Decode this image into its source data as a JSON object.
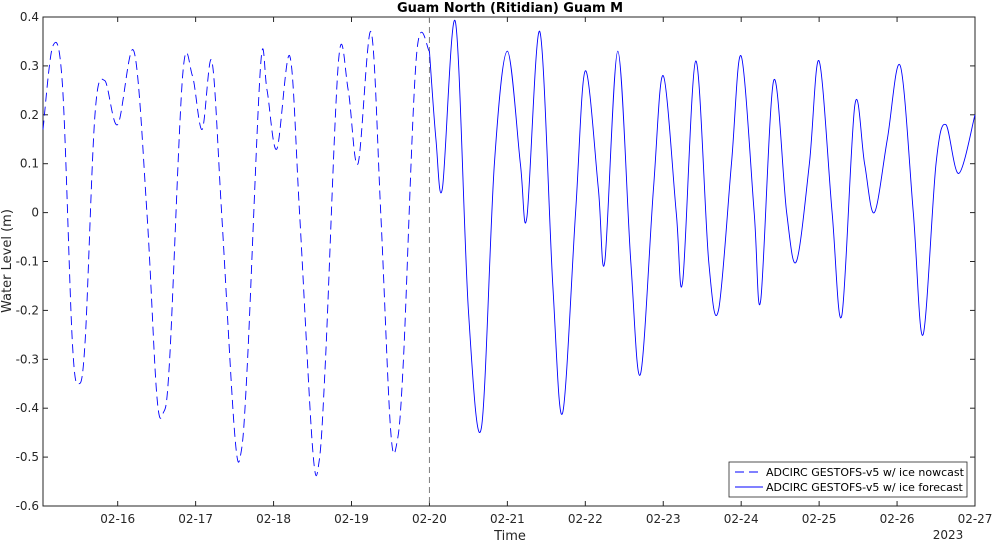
{
  "chart_data": {
    "type": "line",
    "title": "Guam North (Ritidian) Guam M",
    "xlabel": "Time",
    "ylabel": "Water Level (m)",
    "year_label": "2023",
    "xlim": [
      "2023-02-15T01:00",
      "2023-02-27T00:00"
    ],
    "ylim": [
      -0.6,
      0.4
    ],
    "yticks": [
      -0.6,
      -0.5,
      -0.4,
      -0.3,
      -0.2,
      -0.1,
      0,
      0.1,
      0.2,
      0.3,
      0.4
    ],
    "yticklabels": [
      "-0.6",
      "-0.5",
      "-0.4",
      "-0.3",
      "-0.2",
      "-0.1",
      "0",
      "0.1",
      "0.2",
      "0.3",
      "0.4"
    ],
    "xticks": [
      "2023-02-16",
      "2023-02-17",
      "2023-02-18",
      "2023-02-19",
      "2023-02-20",
      "2023-02-21",
      "2023-02-22",
      "2023-02-23",
      "2023-02-24",
      "2023-02-25",
      "2023-02-26",
      "2023-02-27"
    ],
    "xticklabels": [
      "02-16",
      "02-17",
      "02-18",
      "02-19",
      "02-20",
      "02-21",
      "02-22",
      "02-23",
      "02-24",
      "02-25",
      "02-26",
      "02-27"
    ],
    "grid": false,
    "legend_position": "bottom-right",
    "nowcast_divider": "2023-02-20T00:00",
    "series": [
      {
        "name": "ADCIRC GESTOFS-v5 w/ ice nowcast",
        "style": "dashed",
        "color": "#0000ff",
        "points": [
          [
            "2023-02-15T01:00",
            0.17
          ],
          [
            "2023-02-15T04:00",
            0.34
          ],
          [
            "2023-02-15T07:00",
            0.26
          ],
          [
            "2023-02-15T10:00",
            -0.26
          ],
          [
            "2023-02-15T12:00",
            -0.35
          ],
          [
            "2023-02-15T14:00",
            -0.26
          ],
          [
            "2023-02-15T17:00",
            0.2
          ],
          [
            "2023-02-15T20:00",
            0.27
          ],
          [
            "2023-02-16T00:00",
            0.18
          ],
          [
            "2023-02-16T05:00",
            0.33
          ],
          [
            "2023-02-16T09:00",
            0.0
          ],
          [
            "2023-02-16T12:00",
            -0.37
          ],
          [
            "2023-02-16T14:00",
            -0.41
          ],
          [
            "2023-02-16T16:00",
            -0.3
          ],
          [
            "2023-02-16T20:00",
            0.28
          ],
          [
            "2023-02-16T23:00",
            0.28
          ],
          [
            "2023-02-17T02:00",
            0.17
          ],
          [
            "2023-02-17T05:00",
            0.31
          ],
          [
            "2023-02-17T08:00",
            0.0
          ],
          [
            "2023-02-17T12:00",
            -0.45
          ],
          [
            "2023-02-17T14:00",
            -0.49
          ],
          [
            "2023-02-17T16:00",
            -0.3
          ],
          [
            "2023-02-17T20:00",
            0.3
          ],
          [
            "2023-02-17T22:00",
            0.25
          ],
          [
            "2023-02-18T01:00",
            0.13
          ],
          [
            "2023-02-18T05:00",
            0.32
          ],
          [
            "2023-02-18T08:00",
            0.0
          ],
          [
            "2023-02-18T12:00",
            -0.48
          ],
          [
            "2023-02-18T14:00",
            -0.51
          ],
          [
            "2023-02-18T16:00",
            -0.3
          ],
          [
            "2023-02-18T20:00",
            0.31
          ],
          [
            "2023-02-18T23:00",
            0.25
          ],
          [
            "2023-02-19T02:00",
            0.1
          ],
          [
            "2023-02-19T06:00",
            0.37
          ],
          [
            "2023-02-19T09:00",
            0.0
          ],
          [
            "2023-02-19T12:00",
            -0.44
          ],
          [
            "2023-02-19T14:00",
            -0.47
          ],
          [
            "2023-02-19T16:00",
            -0.3
          ],
          [
            "2023-02-19T20:00",
            0.32
          ],
          [
            "2023-02-20T00:00",
            0.33
          ]
        ]
      },
      {
        "name": "ADCIRC GESTOFS-v5 w/ ice forecast",
        "style": "solid",
        "color": "#0000ff",
        "points": [
          [
            "2023-02-20T00:00",
            0.33
          ],
          [
            "2023-02-20T02:00",
            0.15
          ],
          [
            "2023-02-20T04:00",
            0.05
          ],
          [
            "2023-02-20T08:00",
            0.39
          ],
          [
            "2023-02-20T12:00",
            -0.2
          ],
          [
            "2023-02-20T16:00",
            -0.44
          ],
          [
            "2023-02-20T20:00",
            0.1
          ],
          [
            "2023-02-21T00:00",
            0.33
          ],
          [
            "2023-02-21T04:00",
            0.1
          ],
          [
            "2023-02-21T06:00",
            -0.01
          ],
          [
            "2023-02-21T10:00",
            0.37
          ],
          [
            "2023-02-21T14:00",
            -0.15
          ],
          [
            "2023-02-21T17:00",
            -0.41
          ],
          [
            "2023-02-21T21:00",
            0.0
          ],
          [
            "2023-02-22T00:00",
            0.29
          ],
          [
            "2023-02-22T04:00",
            0.05
          ],
          [
            "2023-02-22T06:00",
            -0.1
          ],
          [
            "2023-02-22T10:00",
            0.33
          ],
          [
            "2023-02-22T14:00",
            -0.1
          ],
          [
            "2023-02-22T17:00",
            -0.33
          ],
          [
            "2023-02-22T21:00",
            0.05
          ],
          [
            "2023-02-23T00:00",
            0.28
          ],
          [
            "2023-02-23T04:00",
            0.0
          ],
          [
            "2023-02-23T06:00",
            -0.14
          ],
          [
            "2023-02-23T10:00",
            0.31
          ],
          [
            "2023-02-23T14:00",
            -0.1
          ],
          [
            "2023-02-23T17:00",
            -0.2
          ],
          [
            "2023-02-23T21:00",
            0.1
          ],
          [
            "2023-02-24T00:00",
            0.32
          ],
          [
            "2023-02-24T04:00",
            0.0
          ],
          [
            "2023-02-24T06:00",
            -0.18
          ],
          [
            "2023-02-24T10:00",
            0.27
          ],
          [
            "2023-02-24T14:00",
            0.0
          ],
          [
            "2023-02-24T17:00",
            -0.1
          ],
          [
            "2023-02-24T21:00",
            0.1
          ],
          [
            "2023-02-25T00:00",
            0.31
          ],
          [
            "2023-02-25T04:00",
            0.0
          ],
          [
            "2023-02-25T07:00",
            -0.21
          ],
          [
            "2023-02-25T11:00",
            0.22
          ],
          [
            "2023-02-25T14:00",
            0.1
          ],
          [
            "2023-02-25T17:00",
            0.0
          ],
          [
            "2023-02-25T21:00",
            0.15
          ],
          [
            "2023-02-26T01:00",
            0.3
          ],
          [
            "2023-02-26T05:00",
            0.0
          ],
          [
            "2023-02-26T08:00",
            -0.25
          ],
          [
            "2023-02-26T12:00",
            0.1
          ],
          [
            "2023-02-26T15:00",
            0.18
          ],
          [
            "2023-02-26T19:00",
            0.08
          ],
          [
            "2023-02-27T00:00",
            0.2
          ]
        ]
      }
    ]
  }
}
